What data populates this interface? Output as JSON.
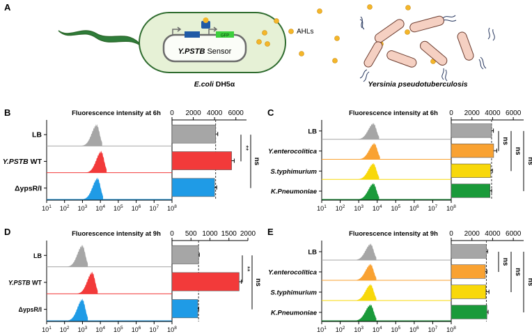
{
  "panel_a": {
    "letter": "A",
    "gfp_label": "GFP",
    "sensor_label": "Y.PSTB",
    "sensor_suffix": " Sensor",
    "ahls_label": "AHLs",
    "ecoli_label": "E.coli",
    "ecoli_suffix": " DH5α",
    "yersinia_label": "Yersinia pseudotuberculosis"
  },
  "colors": {
    "gray": "#a6a6a6",
    "red": "#f23a3a",
    "blue": "#1f9be6",
    "orange": "#f9a232",
    "yellow": "#f8d80a",
    "green": "#1a9a3a",
    "cell_fill": "#e6f1d6",
    "cell_stroke": "#2e6b2e",
    "ahl": "#f4b629",
    "yersinia_fill": "#f5d0c2"
  },
  "hist_axis": {
    "ticks": [
      {
        "base": "10",
        "exp": "1"
      },
      {
        "base": "10",
        "exp": "2"
      },
      {
        "base": "10",
        "exp": "3"
      },
      {
        "base": "10",
        "exp": "4"
      },
      {
        "base": "10",
        "exp": "5"
      },
      {
        "base": "10",
        "exp": "6"
      },
      {
        "base": "10",
        "exp": "7"
      },
      {
        "base": "10",
        "exp": "8"
      }
    ]
  },
  "chart_data": [
    {
      "panel": "B",
      "type": "bar",
      "orientation": "horizontal",
      "title": "Fluorescence intensity at 6h",
      "categories": [
        "LB",
        "Y.PSTB WT",
        "ΔypsR/I"
      ],
      "values": [
        4100,
        5600,
        4000
      ],
      "errors": [
        200,
        250,
        200
      ],
      "xlim": [
        0,
        7000
      ],
      "ticks": [
        0,
        2000,
        4000,
        6000
      ],
      "reference_line": 4100,
      "histogram_peaks_log10": [
        3.8,
        4.05,
        3.85
      ],
      "significance": [
        "**",
        "ns"
      ]
    },
    {
      "panel": "C",
      "type": "bar",
      "orientation": "horizontal",
      "title": "Fluorescence intensity at 6h",
      "categories": [
        "LB",
        "Y.enterocolitica",
        "S.typhimurium",
        "K.Pneumoniae"
      ],
      "values": [
        3900,
        4100,
        3800,
        3750
      ],
      "errors": [
        180,
        300,
        180,
        160
      ],
      "xlim": [
        0,
        7000
      ],
      "ticks": [
        0,
        2000,
        4000,
        6000
      ],
      "reference_line": 3900,
      "histogram_peaks_log10": [
        3.8,
        3.85,
        3.8,
        3.8
      ],
      "significance": [
        "ns",
        "ns",
        "ns"
      ]
    },
    {
      "panel": "D",
      "type": "bar",
      "orientation": "horizontal",
      "title": "Fluorescence intensity at 9h",
      "categories": [
        "LB",
        "Y.PSTB WT",
        "ΔypsR/I"
      ],
      "values": [
        700,
        1770,
        680
      ],
      "errors": [
        20,
        60,
        25
      ],
      "xlim": [
        0,
        2000
      ],
      "ticks": [
        0,
        500,
        1000,
        1500,
        2000
      ],
      "reference_line": 700,
      "histogram_peaks_log10": [
        3.0,
        3.55,
        3.0
      ],
      "significance": [
        "**",
        "ns"
      ]
    },
    {
      "panel": "E",
      "type": "bar",
      "orientation": "horizontal",
      "title": "Fluorescence intensity at 9h",
      "categories": [
        "LB",
        "Y.enterocolitica",
        "S.typhimurium",
        "K.Pneumoniae"
      ],
      "values": [
        3400,
        3300,
        3350,
        3450
      ],
      "errors": [
        120,
        150,
        300,
        120
      ],
      "xlim": [
        0,
        7000
      ],
      "ticks": [
        0,
        2000,
        4000,
        6000
      ],
      "reference_line": 3400,
      "histogram_peaks_log10": [
        3.65,
        3.65,
        3.65,
        3.65
      ],
      "significance": [
        "ns",
        "ns",
        "ns"
      ]
    }
  ]
}
